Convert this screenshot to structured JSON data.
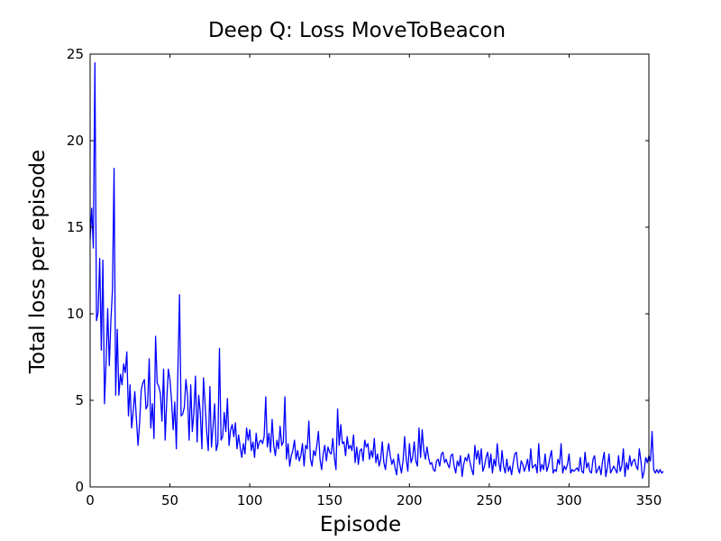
{
  "chart_data": {
    "type": "line",
    "title": "Deep Q: Loss MoveToBeacon",
    "xlabel": "Episode",
    "ylabel": "Total loss per episode",
    "xlim": [
      0,
      350
    ],
    "ylim": [
      0,
      25
    ],
    "xticks": [
      0,
      50,
      100,
      150,
      200,
      250,
      300,
      350
    ],
    "yticks": [
      0,
      5,
      10,
      15,
      20,
      25
    ],
    "grid": false,
    "line_color": "#0000ff",
    "series": [
      {
        "values": [
          14.3,
          16.1,
          13.8,
          24.5,
          9.6,
          10.1,
          13.2,
          7.9,
          13.1,
          4.8,
          7.2,
          10.3,
          7.0,
          9.6,
          11.4,
          18.4,
          5.3,
          9.1,
          5.3,
          6.5,
          5.9,
          7.1,
          6.6,
          7.8,
          4.1,
          5.9,
          3.4,
          4.4,
          5.5,
          3.9,
          2.4,
          3.7,
          5.6,
          6.0,
          6.2,
          4.5,
          4.7,
          7.4,
          3.4,
          4.8,
          2.8,
          8.7,
          6.0,
          5.8,
          5.4,
          3.8,
          6.8,
          2.7,
          5.0,
          6.8,
          6.2,
          5.0,
          3.3,
          4.9,
          2.2,
          6.8,
          11.1,
          4.1,
          4.2,
          4.6,
          6.2,
          5.3,
          2.7,
          5.9,
          3.2,
          4.3,
          6.4,
          2.6,
          5.3,
          4.3,
          2.2,
          6.3,
          4.8,
          3.2,
          2.1,
          5.8,
          2.3,
          3.5,
          4.8,
          2.1,
          2.5,
          8.0,
          2.7,
          2.9,
          4.3,
          3.2,
          5.1,
          2.4,
          3.3,
          3.6,
          2.9,
          3.7,
          2.2,
          3.0,
          2.3,
          1.7,
          2.5,
          1.9,
          3.4,
          2.7,
          3.3,
          2.1,
          2.6,
          1.7,
          3.1,
          2.2,
          2.6,
          2.7,
          2.5,
          2.9,
          5.2,
          2.3,
          3.1,
          2.0,
          3.9,
          2.4,
          1.8,
          2.7,
          2.2,
          3.5,
          2.4,
          2.6,
          5.2,
          1.6,
          2.5,
          1.2,
          1.8,
          2.1,
          2.7,
          1.6,
          2.1,
          1.5,
          1.8,
          2.5,
          1.2,
          2.4,
          2.2,
          3.8,
          1.6,
          1.2,
          2.1,
          1.8,
          2.4,
          3.2,
          1.6,
          1.0,
          1.9,
          2.4,
          1.5,
          2.3,
          2.0,
          1.9,
          2.8,
          1.7,
          1.0,
          4.5,
          2.4,
          3.6,
          2.5,
          2.6,
          1.8,
          2.9,
          2.2,
          2.4,
          2.1,
          3.0,
          1.4,
          2.3,
          1.3,
          2.1,
          2.2,
          1.5,
          2.7,
          2.3,
          2.5,
          1.6,
          2.1,
          1.7,
          2.8,
          1.4,
          1.9,
          1.2,
          1.6,
          2.6,
          1.4,
          1.0,
          1.9,
          2.5,
          1.8,
          1.3,
          1.6,
          1.1,
          0.7,
          1.9,
          1.3,
          0.8,
          1.5,
          2.9,
          1.6,
          0.9,
          2.5,
          1.4,
          1.7,
          2.6,
          1.5,
          1.2,
          3.4,
          1.7,
          3.3,
          2.1,
          1.6,
          2.3,
          1.7,
          1.3,
          1.4,
          1.0,
          0.9,
          1.5,
          1.6,
          1.2,
          1.9,
          2.0,
          1.4,
          1.6,
          1.3,
          1.1,
          1.8,
          1.9,
          1.2,
          0.8,
          1.5,
          1.2,
          1.8,
          0.6,
          1.3,
          1.7,
          1.5,
          1.9,
          1.4,
          1.0,
          0.7,
          2.4,
          1.6,
          2.1,
          1.3,
          2.2,
          0.9,
          1.2,
          1.7,
          2.0,
          1.1,
          1.9,
          0.8,
          1.6,
          1.2,
          2.5,
          1.4,
          0.9,
          2.1,
          1.2,
          0.8,
          1.6,
          0.9,
          1.2,
          0.7,
          1.4,
          1.9,
          2.0,
          1.1,
          0.8,
          1.5,
          1.3,
          0.9,
          1.2,
          1.6,
          0.9,
          2.2,
          1.1,
          1.2,
          1.3,
          0.8,
          2.5,
          0.9,
          1.3,
          1.0,
          1.9,
          0.9,
          1.2,
          1.7,
          2.1,
          0.8,
          1.0,
          0.9,
          1.6,
          1.3,
          2.5,
          0.8,
          1.2,
          1.0,
          1.3,
          1.9,
          0.8,
          1.0,
          0.9,
          1.0,
          1.1,
          0.9,
          1.7,
          0.9,
          0.8,
          2.0,
          1.1,
          1.4,
          0.9,
          0.8,
          1.6,
          1.8,
          0.8,
          1.0,
          1.2,
          0.7,
          1.5,
          2.0,
          0.6,
          1.1,
          1.9,
          0.8,
          1.0,
          1.2,
          1.0,
          0.8,
          1.8,
          0.9,
          1.2,
          2.2,
          0.6,
          1.4,
          1.0,
          1.8,
          1.2,
          1.5,
          1.6,
          1.2,
          1.0,
          2.2,
          1.5,
          0.5,
          0.9,
          1.7,
          1.4,
          1.8,
          1.5,
          3.2,
          1.0,
          0.8,
          1.0,
          0.8,
          1.0,
          0.8,
          0.9
        ]
      }
    ]
  }
}
